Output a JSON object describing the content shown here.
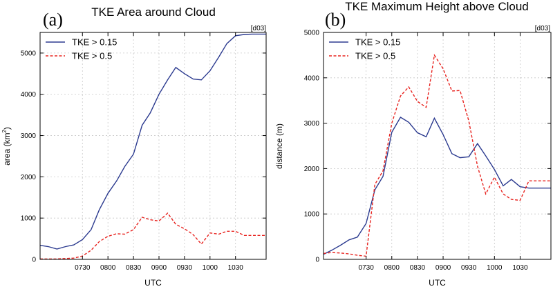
{
  "chart_data": [
    {
      "type": "line",
      "panel_label": "(a)",
      "title": "TKE Area around Cloud",
      "tag": "[d03]",
      "xlabel": "UTC",
      "ylabel": "area (km",
      "ylabel_sup": "2",
      "ylabel_close": ")",
      "xlim": [
        6.67,
        11.1
      ],
      "ylim": [
        0,
        5500
      ],
      "xticks": [
        7.5,
        8.0,
        8.5,
        9.0,
        9.5,
        10.0,
        10.5
      ],
      "xtick_labels": [
        "0730",
        "0800",
        "0830",
        "0900",
        "0930",
        "1000",
        "1030"
      ],
      "yticks": [
        0,
        1000,
        2000,
        3000,
        4000,
        5000
      ],
      "ytick_labels": [
        "0",
        "1000",
        "2000",
        "3000",
        "4000",
        "5000"
      ],
      "grid": true,
      "legend_position": "top-left",
      "series": [
        {
          "name": "TKE > 0.15",
          "color": "#2b3a8f",
          "dash": "solid",
          "x": [
            6.67,
            6.83,
            7.0,
            7.17,
            7.33,
            7.5,
            7.67,
            7.83,
            8.0,
            8.17,
            8.33,
            8.5,
            8.67,
            8.83,
            9.0,
            9.17,
            9.33,
            9.5,
            9.67,
            9.83,
            10.0,
            10.17,
            10.33,
            10.5,
            10.67,
            10.83,
            11.0,
            11.1
          ],
          "y": [
            340,
            310,
            250,
            310,
            350,
            480,
            720,
            1200,
            1600,
            1900,
            2250,
            2550,
            3250,
            3550,
            4000,
            4350,
            4650,
            4500,
            4370,
            4350,
            4570,
            4900,
            5230,
            5420,
            5450,
            5460,
            5460,
            5460
          ]
        },
        {
          "name": "TKE > 0.5",
          "color": "#e8231f",
          "dash": "dashed",
          "x": [
            6.67,
            6.83,
            7.0,
            7.17,
            7.33,
            7.5,
            7.67,
            7.83,
            8.0,
            8.17,
            8.33,
            8.5,
            8.67,
            8.83,
            9.0,
            9.17,
            9.33,
            9.5,
            9.67,
            9.83,
            10.0,
            10.17,
            10.33,
            10.5,
            10.67,
            10.83,
            11.0,
            11.1
          ],
          "y": [
            10,
            10,
            10,
            20,
            30,
            80,
            220,
            430,
            560,
            620,
            610,
            720,
            1020,
            960,
            930,
            1120,
            850,
            740,
            600,
            370,
            640,
            610,
            680,
            680,
            580,
            580,
            580,
            580
          ]
        }
      ]
    },
    {
      "type": "line",
      "panel_label": "(b)",
      "title": "TKE Maximum Height above Cloud",
      "tag": "[d03]",
      "xlabel": "UTC",
      "ylabel": "distance (m)",
      "xlim": [
        6.67,
        11.1
      ],
      "ylim": [
        0,
        5000
      ],
      "xticks": [
        7.5,
        8.0,
        8.5,
        9.0,
        9.5,
        10.0,
        10.5
      ],
      "xtick_labels": [
        "0730",
        "0800",
        "0830",
        "0900",
        "0930",
        "1000",
        "1030"
      ],
      "yticks": [
        0,
        1000,
        2000,
        3000,
        4000,
        5000
      ],
      "ytick_labels": [
        "0",
        "1000",
        "2000",
        "3000",
        "4000",
        "5000"
      ],
      "grid": true,
      "legend_position": "top-left",
      "series": [
        {
          "name": "TKE > 0.15",
          "color": "#2b3a8f",
          "dash": "solid",
          "x": [
            6.67,
            6.83,
            7.0,
            7.17,
            7.33,
            7.5,
            7.67,
            7.83,
            8.0,
            8.17,
            8.33,
            8.5,
            8.67,
            8.83,
            9.0,
            9.17,
            9.33,
            9.5,
            9.67,
            9.83,
            10.0,
            10.17,
            10.33,
            10.5,
            10.67,
            10.83,
            11.0,
            11.1
          ],
          "y": [
            110,
            200,
            310,
            430,
            490,
            790,
            1530,
            1830,
            2800,
            3130,
            3020,
            2790,
            2700,
            3110,
            2750,
            2330,
            2240,
            2260,
            2550,
            2280,
            1980,
            1620,
            1760,
            1600,
            1570,
            1570,
            1570,
            1570
          ]
        },
        {
          "name": "TKE > 0.5",
          "color": "#e8231f",
          "dash": "dashed",
          "x": [
            6.67,
            6.83,
            7.0,
            7.17,
            7.33,
            7.5,
            7.67,
            7.83,
            8.0,
            8.17,
            8.33,
            8.5,
            8.67,
            8.83,
            9.0,
            9.17,
            9.33,
            9.5,
            9.67,
            9.83,
            10.0,
            10.17,
            10.33,
            10.5,
            10.67,
            10.83,
            11.0,
            11.1
          ],
          "y": [
            130,
            150,
            140,
            120,
            90,
            70,
            1650,
            1950,
            3000,
            3600,
            3800,
            3480,
            3350,
            4500,
            4200,
            3710,
            3720,
            3050,
            2050,
            1440,
            1810,
            1440,
            1320,
            1300,
            1730,
            1730,
            1730,
            1730
          ]
        }
      ]
    }
  ]
}
